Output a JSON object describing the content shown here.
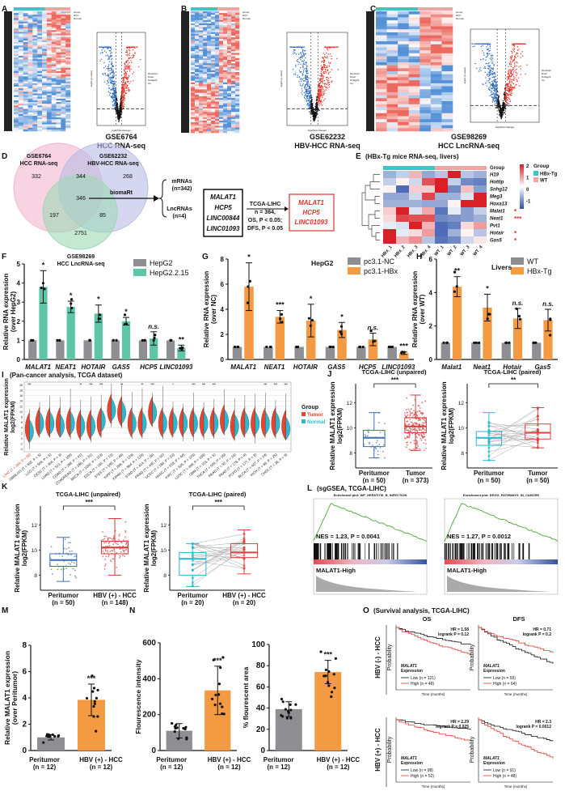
{
  "panels": {
    "A": "A",
    "B": "B",
    "C": "C",
    "D": "D",
    "E": "E",
    "F": "F",
    "G": "G",
    "H": "H",
    "I": "I",
    "J": "J",
    "K": "K",
    "L": "L",
    "M": "M",
    "N": "N",
    "O": "O"
  },
  "top": {
    "A": {
      "caption": [
        "GSE6764",
        "HCC RNA-seq"
      ],
      "legend": [
        "Group",
        "HCC",
        "Normal"
      ]
    },
    "B": {
      "caption": [
        "GSE62232",
        "HBV-HCC RNA-seq"
      ],
      "legend": [
        "Group",
        "HCC",
        "Normal"
      ]
    },
    "C": {
      "caption": [
        "GSE98269",
        "HCC LncRNA-seq"
      ],
      "legend": [
        "Group",
        "HCC",
        "Normal"
      ]
    },
    "volcano_legend": [
      "threshold",
      "Down",
      "NoSignifi",
      "Up"
    ],
    "volcano_xlabel": "log2(fold change)",
    "volcano_ylabel": "-log10 (p-value)",
    "colors": {
      "up": "#e8352a",
      "down": "#2f6bbf",
      "ns": "#111111",
      "high": "#f06b5a",
      "low": "#3e7cc9"
    }
  },
  "venn": {
    "labels": [
      [
        "GSE6764",
        "HCC RNA-seq"
      ],
      [
        "GSE62232",
        "HBV-HCC RNA-seq"
      ],
      [
        "GSE98269",
        "HCC LncRNA-seq"
      ]
    ],
    "regions": {
      "only1": 332,
      "only2": 268,
      "only3": 2751,
      "s12": 344,
      "s13": 197,
      "s23": 85,
      "all": 346
    },
    "colors": [
      "#f4b6cf",
      "#b9bde6",
      "#9fd8b6"
    ],
    "tool": "biomaRt",
    "mrnas": [
      "mRNAs",
      "(n=342)"
    ],
    "lncrnas": [
      "LncRNAs",
      "(n=4)"
    ],
    "candidates": [
      "MALAT1",
      "HCP5",
      "LINC00844",
      "LINC01093"
    ],
    "filter": [
      "TCGA-LIHC",
      "n = 364,",
      "OS, P < 0.05;",
      "DFS, P < 0.05"
    ],
    "selected": [
      "MALAT1",
      "HCP5",
      "LINC01093"
    ]
  },
  "chart_data": [
    {
      "id": "E",
      "type": "heatmap",
      "title": "(HBx-Tg mice RNA-seq, livers)",
      "rows": [
        "H19",
        "Hottip",
        "Snhg12",
        "Meg3",
        "Hoxa13",
        "Malat1",
        "Neat1",
        "Pvt1",
        "Hotair",
        "Gas5"
      ],
      "row_sig": [
        "",
        "",
        "",
        "",
        "",
        "*",
        "***",
        "",
        "*",
        "*"
      ],
      "cols": [
        "HBx_1",
        "HBx_2",
        "HBx_3",
        "HBx_4",
        "WT_1",
        "WT_2",
        "WT_3",
        "WT_4"
      ],
      "col_group": [
        "HBx-Tg",
        "HBx-Tg",
        "HBx-Tg",
        "HBx-Tg",
        "WT",
        "WT",
        "WT",
        "WT"
      ],
      "values": [
        [
          -0.8,
          -0.5,
          0.6,
          -0.9,
          -0.6,
          1.8,
          -0.6,
          -0.8
        ],
        [
          -0.5,
          0.1,
          -0.4,
          1.4,
          1.9,
          -0.5,
          -1.2,
          -1.3
        ],
        [
          0.1,
          -1.5,
          0.4,
          0.4,
          1.8,
          -1.2,
          0.5,
          -1.0
        ],
        [
          -0.9,
          -0.9,
          -0.4,
          1.5,
          -0.8,
          -0.8,
          -0.3,
          1.8
        ],
        [
          -0.8,
          -0.8,
          -0.8,
          -0.9,
          -0.9,
          0.1,
          1.8,
          1.8
        ],
        [
          0.4,
          1.8,
          -0.3,
          0.7,
          -1.4,
          -0.2,
          -1.0,
          -0.5
        ],
        [
          0.3,
          1.5,
          1.4,
          1.4,
          -1.2,
          -1.1,
          -1.0,
          -0.8
        ],
        [
          -0.2,
          -0.3,
          1.8,
          0.6,
          -1.5,
          -1.3,
          0.3,
          0.8
        ],
        [
          1.8,
          -0.2,
          0.3,
          0.8,
          -1.5,
          -0.8,
          0.1,
          -0.6
        ],
        [
          1.8,
          0.6,
          0.9,
          -0.6,
          -1.4,
          -1.2,
          -0.4,
          0.2
        ]
      ],
      "row_label": "Group",
      "scale_ticks": [
        2,
        1,
        0,
        -1
      ],
      "legend_title": "Group",
      "legend": [
        "HBx-Tg",
        "WT"
      ],
      "group_colors": [
        "#3ec6c6",
        "#f4a3a3"
      ],
      "scale_colors": [
        "#2a4fa8",
        "#ffffff",
        "#d92027"
      ]
    },
    {
      "id": "F",
      "type": "bar",
      "ylabel": [
        "Relative RNA expression",
        "(over HepG2)"
      ],
      "categories": [
        "MALAT1",
        "NEAT1",
        "HOTAIR",
        "GAS5",
        "HCP5",
        "LINC01093"
      ],
      "series": [
        {
          "name": "HepG2",
          "values": [
            1,
            1,
            1,
            1,
            1,
            1
          ],
          "errors": [
            0,
            0,
            0,
            0,
            0,
            0
          ],
          "color": "#8e8e93"
        },
        {
          "name": "HepG2.2.15",
          "values": [
            3.8,
            2.75,
            2.4,
            2.0,
            1.1,
            0.6
          ],
          "errors": [
            0.85,
            0.3,
            0.45,
            0.2,
            0.35,
            0.15
          ],
          "color": "#5cc6a6"
        }
      ],
      "significance": [
        "*",
        "*",
        "*",
        "*",
        "n.s.",
        "**"
      ],
      "ylim": [
        0,
        5
      ],
      "yticks": [
        0,
        1,
        2,
        3,
        4,
        5
      ],
      "subtitle": ""
    },
    {
      "id": "G",
      "type": "bar",
      "ylabel": [
        "Relative RNA expression",
        "(over NC)"
      ],
      "subtitle": "HepG2",
      "categories": [
        "MALAT1",
        "NEAT1",
        "HOTAIR",
        "GAS5",
        "HCP5",
        "LINC01093"
      ],
      "series": [
        {
          "name": "pc3.1-NC",
          "values": [
            1,
            1,
            1,
            1,
            1,
            1
          ],
          "errors": [
            0,
            0,
            0,
            0,
            0,
            0
          ],
          "color": "#8e8e93"
        },
        {
          "name": "pc3.1-HBx",
          "values": [
            5.8,
            3.4,
            3.1,
            2.35,
            1.6,
            0.5
          ],
          "errors": [
            1.9,
            0.5,
            1.3,
            0.6,
            0.5,
            0.1
          ],
          "color": "#f39a43"
        }
      ],
      "significance": [
        "*",
        "***",
        "*",
        "*",
        "n.s.",
        "***"
      ],
      "ylim": [
        0,
        8
      ],
      "yticks": [
        0,
        2,
        4,
        6,
        8
      ]
    },
    {
      "id": "H",
      "type": "bar",
      "ylabel": [
        "Relative RNA expression",
        "(over WT)"
      ],
      "subtitle": "Livers",
      "categories": [
        "Malat1",
        "Neat1",
        "Hotair",
        "Gas5"
      ],
      "series": [
        {
          "name": "WT",
          "values": [
            1,
            1,
            1,
            1
          ],
          "errors": [
            0,
            0,
            0,
            0
          ],
          "color": "#8e8e93"
        },
        {
          "name": "HBx-Tg",
          "values": [
            4.35,
            3.1,
            2.45,
            2.35
          ],
          "errors": [
            0.6,
            0.8,
            0.6,
            0.65
          ],
          "color": "#f39a43"
        }
      ],
      "significance": [
        "**",
        "*",
        "n.s.",
        "n.s."
      ],
      "ylim": [
        0,
        6
      ],
      "yticks": [
        0,
        2,
        4,
        6
      ]
    },
    {
      "id": "J1",
      "type": "box",
      "title": "TCGA-LIHC (unpaired)",
      "ylabel": [
        "Relative MALAT1 expression",
        "log2(FPKM)"
      ],
      "groups": [
        [
          "Peritumor",
          "(n = 50)"
        ],
        [
          "Tumor",
          "(n = 373)"
        ]
      ],
      "stats": [
        [
          7.6,
          8.5,
          9.2,
          9.8,
          11.2
        ],
        [
          8.2,
          9.6,
          10.1,
          10.8,
          12.6
        ]
      ],
      "colors": [
        "#3d6fb6",
        "#d63a3a"
      ],
      "significance": "***",
      "paired": false,
      "ylim": [
        6.8,
        13.5
      ],
      "yticks": [
        8,
        10,
        12
      ]
    },
    {
      "id": "J2",
      "type": "box",
      "title": "TCGA-LIHC (paired)",
      "ylabel": [
        "Relative MALAT1 expression",
        "log2(FPKM)"
      ],
      "groups": [
        [
          "Peritumor",
          "(n = 50)"
        ],
        [
          "Tumor",
          "(n = 50)"
        ]
      ],
      "stats": [
        [
          7.4,
          8.6,
          9.2,
          9.7,
          11.2
        ],
        [
          8.4,
          9.1,
          9.6,
          10.3,
          11.6
        ]
      ],
      "colors": [
        "#2ab7cf",
        "#e0413e"
      ],
      "significance": "**",
      "paired": true,
      "ylim": [
        6.8,
        13.5
      ],
      "yticks": [
        8,
        10,
        12
      ]
    },
    {
      "id": "K1",
      "type": "box",
      "title": "TCGA-LIHC (unpaired)",
      "ylabel": [
        "Relative MALAT1 expression",
        "log2(FPKM)"
      ],
      "groups": [
        [
          "Peritumor",
          "(n = 50)"
        ],
        [
          "HBV (+) - HCC",
          "(n = 148)"
        ]
      ],
      "stats": [
        [
          7.5,
          8.7,
          9.2,
          9.7,
          11.0
        ],
        [
          8.0,
          9.7,
          10.2,
          10.7,
          12.5
        ]
      ],
      "colors": [
        "#3d6fb6",
        "#d63a3a"
      ],
      "significance": "***",
      "paired": false,
      "ylim": [
        6.8,
        13.5
      ],
      "yticks": [
        8,
        10,
        12
      ]
    },
    {
      "id": "K2",
      "type": "box",
      "title": "TCGA-LIHC (paired)",
      "ylabel": [
        "Relative MALAT1 expression",
        "log2(FPKM)"
      ],
      "groups": [
        [
          "Peritumor",
          "(n = 20)"
        ],
        [
          "HBV (+) - HCC",
          "(n = 20)"
        ]
      ],
      "stats": [
        [
          7.1,
          8.0,
          9.3,
          9.8,
          10.5
        ],
        [
          8.1,
          9.4,
          9.8,
          10.5,
          11.6
        ]
      ],
      "colors": [
        "#2ab7cf",
        "#e0413e"
      ],
      "significance": "***",
      "paired": true,
      "ylim": [
        6.8,
        13.5
      ],
      "yticks": [
        8,
        10,
        12
      ]
    },
    {
      "id": "M",
      "type": "bar",
      "ylabel": [
        "Relative MALAT1 expression",
        "(over Peritumor)"
      ],
      "categories": [
        [
          "Peritumor",
          "(n = 12)"
        ],
        [
          "HBV (+) - HCC",
          "(n = 12)"
        ]
      ],
      "values": [
        1.0,
        3.85
      ],
      "errors": [
        0.2,
        1.2
      ],
      "colors": [
        "#8e8e93",
        "#f39a43"
      ],
      "significance": [
        "",
        "***"
      ],
      "ylim": [
        0,
        8
      ],
      "yticks": [
        0,
        2,
        4,
        6,
        8
      ]
    },
    {
      "id": "N1",
      "type": "bar",
      "ylabel": [
        "Flourescence intensity"
      ],
      "categories": [
        [
          "Peritumor",
          "(n = 12)"
        ],
        [
          "HBV (+) - HCC",
          "(n = 12)"
        ]
      ],
      "values": [
        110,
        335
      ],
      "errors": [
        40,
        135
      ],
      "colors": [
        "#8e8e93",
        "#f39a43"
      ],
      "significance": [
        "",
        "***"
      ],
      "ylim": [
        0,
        600
      ],
      "yticks": [
        0,
        200,
        400,
        600
      ]
    },
    {
      "id": "N2",
      "type": "bar",
      "ylabel": [
        "% flourescent area"
      ],
      "categories": [
        [
          "Peritumor",
          "(n = 12)"
        ],
        [
          "HBV (+) - HCC",
          "(n = 12)"
        ]
      ],
      "values": [
        39,
        74
      ],
      "errors": [
        7,
        11
      ],
      "colors": [
        "#8e8e93",
        "#f39a43"
      ],
      "significance": [
        "",
        "***"
      ],
      "ylim": [
        0,
        100
      ],
      "yticks": [
        0,
        20,
        40,
        60,
        80,
        100
      ]
    },
    {
      "id": "I",
      "type": "violin",
      "title": "(Pan-cancer analysis, TCGA dataset)",
      "ylabel": [
        "Relative MALAT1 expression",
        "log2(FPKM)"
      ],
      "yticks": [
        -4,
        -2,
        0,
        2,
        4,
        6,
        8,
        10,
        12,
        14,
        16,
        18,
        20
      ],
      "ylim": [
        -5,
        21
      ],
      "legend_title": "Group",
      "legend": [
        "Tumor",
        "Normal"
      ],
      "colors": [
        "#e8432e",
        "#2cb9d0"
      ],
      "categories": [
        "LIHC (T = 369, P = 50)",
        "GBMLGG (T = 662, P = 5)",
        "LGG (T = 509, P = 5)",
        "CESC (T = 304, P = 3)",
        "LUAD (T = 513, P = 109)",
        "COAD (T = 288, P = 41)",
        "COADREAD (T = 380, P = 51)",
        "BRCA (T = 1092, P = 113)",
        "ESCA (T = 181, P = 13)",
        "STES (T = 595, P = 49)",
        "KIRP (T = 288, P = 129)",
        "KIPAN (T = 884, P = 129)",
        "STAD (T = 414, P = 36)",
        "PRAD (T = 495, P = 52)",
        "UCEC (T = 180, P = 23)",
        "HNSC (T = 518, P = 44)",
        "KIRC (T = 535, P = 129)",
        "LUSC (T = 498, P = 109)",
        "GBM (T = 153, P = 5)",
        "THCA (T = 504, P = 59)",
        "READ (T = 92, P = 10)",
        "PAAD (T = 178, P = 4)",
        "PCPG (T = 177, P = 3)",
        "BLCA (T = 407, P = 19)",
        "KICH (T = 66, P = 25)",
        "CHOL (T = 36, P = 9)"
      ],
      "tumor_median": [
        4,
        6,
        6,
        6,
        6,
        5,
        5,
        6,
        11,
        10,
        6,
        6,
        10,
        6,
        6,
        6,
        6,
        6,
        6,
        7,
        5,
        6,
        6,
        6,
        6,
        5
      ],
      "normal_median": [
        3,
        6,
        6,
        5,
        6,
        5,
        5,
        7,
        11,
        10,
        6,
        6,
        10,
        6,
        6,
        6,
        6,
        6,
        6,
        7,
        5,
        6,
        6,
        6,
        6,
        4
      ],
      "significance": [
        "***",
        "",
        "",
        "",
        "",
        "**",
        "***",
        "***",
        "",
        "**",
        "",
        "**",
        "***",
        "",
        "*",
        "",
        "***",
        "***",
        "***",
        "",
        "",
        "",
        "",
        "***",
        "***",
        "***"
      ]
    }
  ],
  "gsea": [
    {
      "title": "Enrichment plot: WP_HEPATITIS_B_INFECTION",
      "stat": "NES = 1.23, P = 0.0041",
      "phenotype": "MALAT1-High"
    },
    {
      "title": "Enrichment plot: KEGG_PATHWAYS_IN_CANCER",
      "stat": "NES = 1.27, P = 0.0012",
      "phenotype": "MALAT1-High"
    }
  ],
  "gsea_title": "(sgGSEA, TCGA-LIHC)",
  "survival": {
    "title": "(Survival analysis, TCGA-LIHC)",
    "cols": [
      "OS",
      "DFS"
    ],
    "rows": [
      "HBV (-) - HCC",
      "HBV (+) - HCC"
    ],
    "ylabel": "Probability",
    "xlabel": "Time (months)",
    "legend_title": [
      "MALAT1",
      "Expression"
    ],
    "plots": [
      {
        "hr": "HR = 1.58",
        "p": "logrank P = 0.12",
        "low": "Low  (n = 121)",
        "high": "High  (n = 46)"
      },
      {
        "hr": "HR = 0.71",
        "p": "logrank P = 0.2",
        "low": "Low  (n = 59)",
        "high": "High  (n = 64)"
      },
      {
        "hr": "HR = 2.29",
        "p": "logrank P = 0.025",
        "low": "Low  (n = 98)",
        "high": "High  (n = 52)"
      },
      {
        "hr": "HR = 2.3",
        "p": "logrank P = 0.0012",
        "low": "Low  (n = 91)",
        "high": "High  (n = 48)"
      }
    ],
    "colors": {
      "low": "#111111",
      "high": "#e23a2e"
    }
  }
}
